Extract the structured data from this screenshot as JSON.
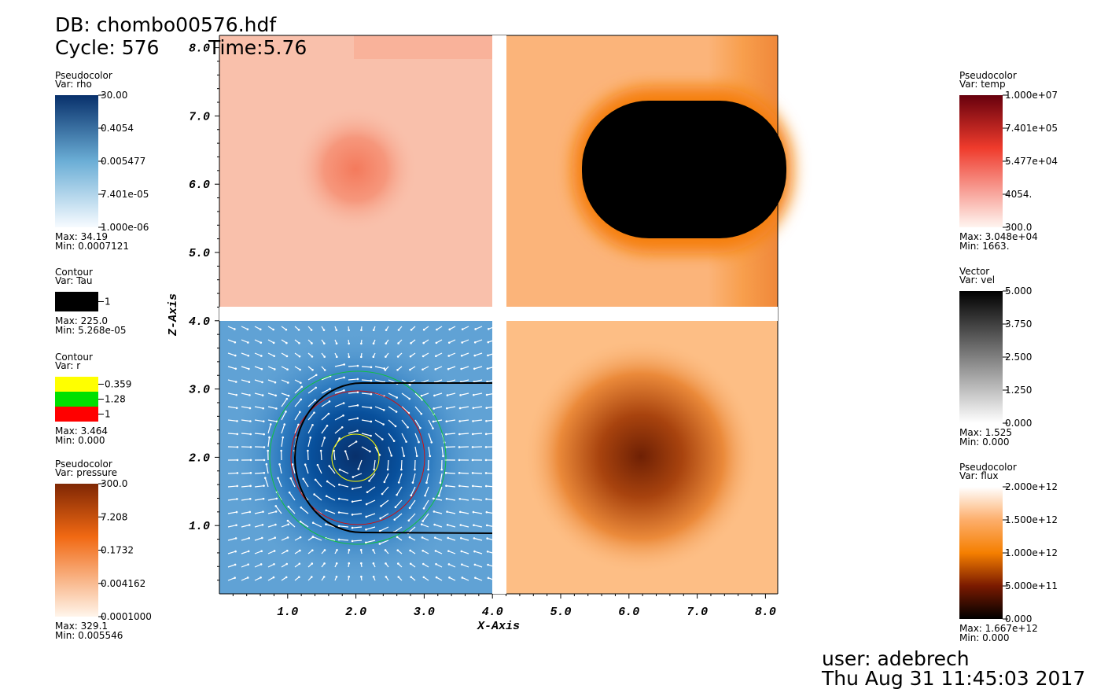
{
  "header": {
    "db": "DB: chombo00576.hdf",
    "cycle": "Cycle: 576",
    "time": "Time:5.76"
  },
  "left_legends": [
    {
      "plot": "Pseudocolor",
      "var": "Var: rho",
      "labels": [
        "30.00",
        "0.4054",
        "0.005477",
        "7.401e-05",
        "1.000e-06"
      ],
      "max": "Max:  34.19",
      "min": "Min:  0.0007121"
    },
    {
      "plot": "Contour",
      "var": "Var: Tau",
      "labels": [
        "1"
      ],
      "max": "Max:  225.0",
      "min": "Min:  5.268e-05"
    },
    {
      "plot": "Contour",
      "var": "Var: r",
      "labels": [
        "0.359",
        "1.28",
        "1"
      ],
      "max": "Max:  3.464",
      "min": "Min:  0.000"
    },
    {
      "plot": "Pseudocolor",
      "var": "Var: pressure",
      "labels": [
        "300.0",
        "7.208",
        "0.1732",
        "0.004162",
        "0.0001000"
      ],
      "max": "Max:  329.1",
      "min": "Min:  0.005546"
    }
  ],
  "right_legends": [
    {
      "plot": "Pseudocolor",
      "var": "Var: temp",
      "labels": [
        "1.000e+07",
        "7.401e+05",
        "5.477e+04",
        "4054.",
        "300.0"
      ],
      "max": "Max:  3.048e+04",
      "min": "Min:  1663."
    },
    {
      "plot": "Vector",
      "var": "Var: vel",
      "labels": [
        "5.000",
        "3.750",
        "2.500",
        "1.250",
        "0.000"
      ],
      "max": "Max:  1.525",
      "min": "Min:  0.000"
    },
    {
      "plot": "Pseudocolor",
      "var": "Var: flux",
      "labels": [
        "2.000e+12",
        "1.500e+12",
        "1.000e+12",
        "5.000e+11",
        "0.000"
      ],
      "max": "Max:  1.667e+12",
      "min": "Min:  0.000"
    }
  ],
  "axes": {
    "x_title": "X-Axis",
    "y_title": "Z-Axis",
    "x_ticks": [
      "1.0",
      "2.0",
      "3.0",
      "4.0",
      "5.0",
      "6.0",
      "7.0",
      "8.0"
    ],
    "y_ticks": [
      "1.0",
      "2.0",
      "3.0",
      "4.0",
      "5.0",
      "6.0",
      "7.0",
      "8.0"
    ]
  },
  "footer": {
    "user": "user: adebrech",
    "date": "Thu Aug 31 11:45:03 2017"
  }
}
